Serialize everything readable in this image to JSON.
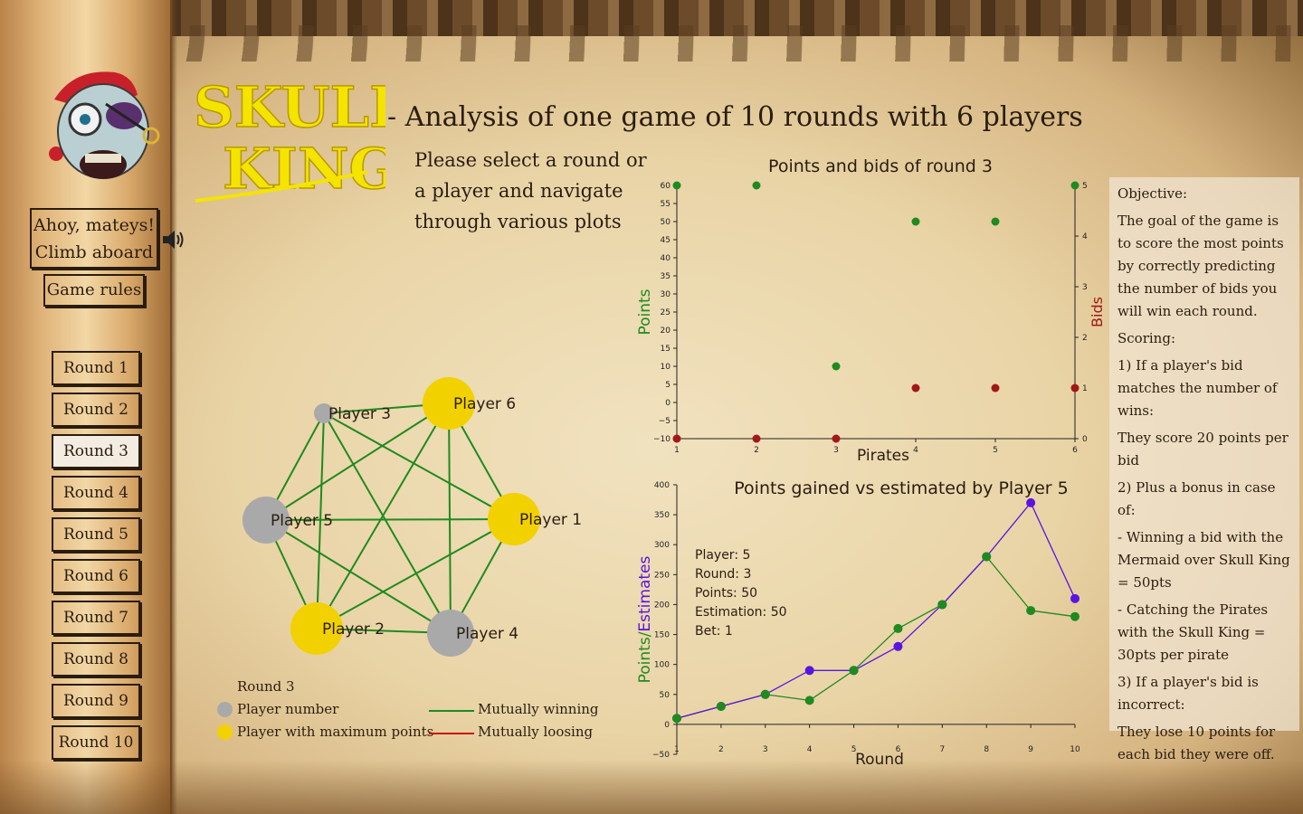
{
  "header": {
    "title": "- Analysis of one game of 10 rounds with 6 players",
    "instruction": "Please select a round or a player and navigate through various plots",
    "logo_line1": "SKULL",
    "logo_line2": "KING"
  },
  "sidebar": {
    "ahoy_line1": "Ahoy, mateys!",
    "ahoy_line2": "Climb aboard",
    "rules_label": "Game rules",
    "rounds": [
      "Round 1",
      "Round 2",
      "Round 3",
      "Round 4",
      "Round 5",
      "Round 6",
      "Round 7",
      "Round 8",
      "Round 9",
      "Round 10"
    ],
    "active_round": "Round 3"
  },
  "network": {
    "legend_title": "Round 3",
    "legend_player": "Player number",
    "legend_max": "Player with maximum points",
    "legend_win": "Mutually winning",
    "legend_lose": "Mutually loosing",
    "colors": {
      "player": "#a9a9a9",
      "max": "#f2d100",
      "win": "#1f8a1f",
      "lose": "#cc1111"
    },
    "nodes": [
      {
        "label": "Player 1",
        "max": true
      },
      {
        "label": "Player 2",
        "max": true
      },
      {
        "label": "Player 3",
        "max": false
      },
      {
        "label": "Player 4",
        "max": false
      },
      {
        "label": "Player 5",
        "max": false
      },
      {
        "label": "Player 6",
        "max": true
      }
    ]
  },
  "info": {
    "objective_head": "Objective:",
    "objective": "The goal of the game is to score the most points by correctly predicting the number of bids you will win each round.",
    "scoring_head": "Scoring:",
    "rule1": "1) If a player's bid matches the number of wins:",
    "rule1_detail": "They score 20 points per bid",
    "rule2": "2) Plus a bonus in case of:",
    "bonus1": "- Winning a bid with the Mermaid over Skull King = 50pts",
    "bonus2": "- Catching the Pirates with the Skull King = 30pts per pirate",
    "rule3": "3) If a player's bid is incorrect:",
    "rule3_detail": "They lose 10 points for each bid they were off."
  },
  "chart_data": [
    {
      "type": "scatter",
      "title": "Points and bids of round 3",
      "xlabel": "Pirates",
      "ylabel": "Points",
      "y2label": "Bids",
      "x": [
        1,
        2,
        3,
        4,
        5,
        6
      ],
      "xlim": [
        1,
        6
      ],
      "ylim": [
        -10,
        60
      ],
      "y2lim": [
        0,
        5
      ],
      "yticks": [
        -10,
        -5,
        0,
        5,
        10,
        15,
        20,
        25,
        30,
        35,
        40,
        45,
        50,
        55,
        60
      ],
      "y2ticks": [
        0,
        1,
        2,
        3,
        4,
        5
      ],
      "series": [
        {
          "name": "Points",
          "axis": "left",
          "color": "#1f8a1f",
          "values": [
            60,
            60,
            10,
            50,
            50,
            60
          ]
        },
        {
          "name": "Bids",
          "axis": "right",
          "color": "#a01818",
          "values": [
            0,
            0,
            0,
            1,
            1,
            1
          ]
        }
      ]
    },
    {
      "type": "line",
      "title": "Points gained vs estimated by Player 5",
      "xlabel": "Round",
      "ylabel": "Points/Estimates",
      "x": [
        1,
        2,
        3,
        4,
        5,
        6,
        7,
        8,
        9,
        10
      ],
      "xlim": [
        1,
        10
      ],
      "ylim": [
        -50,
        400
      ],
      "yticks": [
        -50,
        0,
        50,
        100,
        150,
        200,
        250,
        300,
        350,
        400
      ],
      "series": [
        {
          "name": "Points",
          "color": "#1f8a1f",
          "values": [
            10,
            30,
            50,
            40,
            90,
            160,
            200,
            280,
            190,
            180
          ]
        },
        {
          "name": "Estimates",
          "color": "#5a14e0",
          "values": [
            10,
            30,
            50,
            90,
            90,
            130,
            200,
            280,
            370,
            210
          ]
        }
      ],
      "annotation": [
        "Player: 5",
        "Round: 3",
        "Points: 50",
        "Estimation: 50",
        "Bet: 1"
      ]
    }
  ]
}
